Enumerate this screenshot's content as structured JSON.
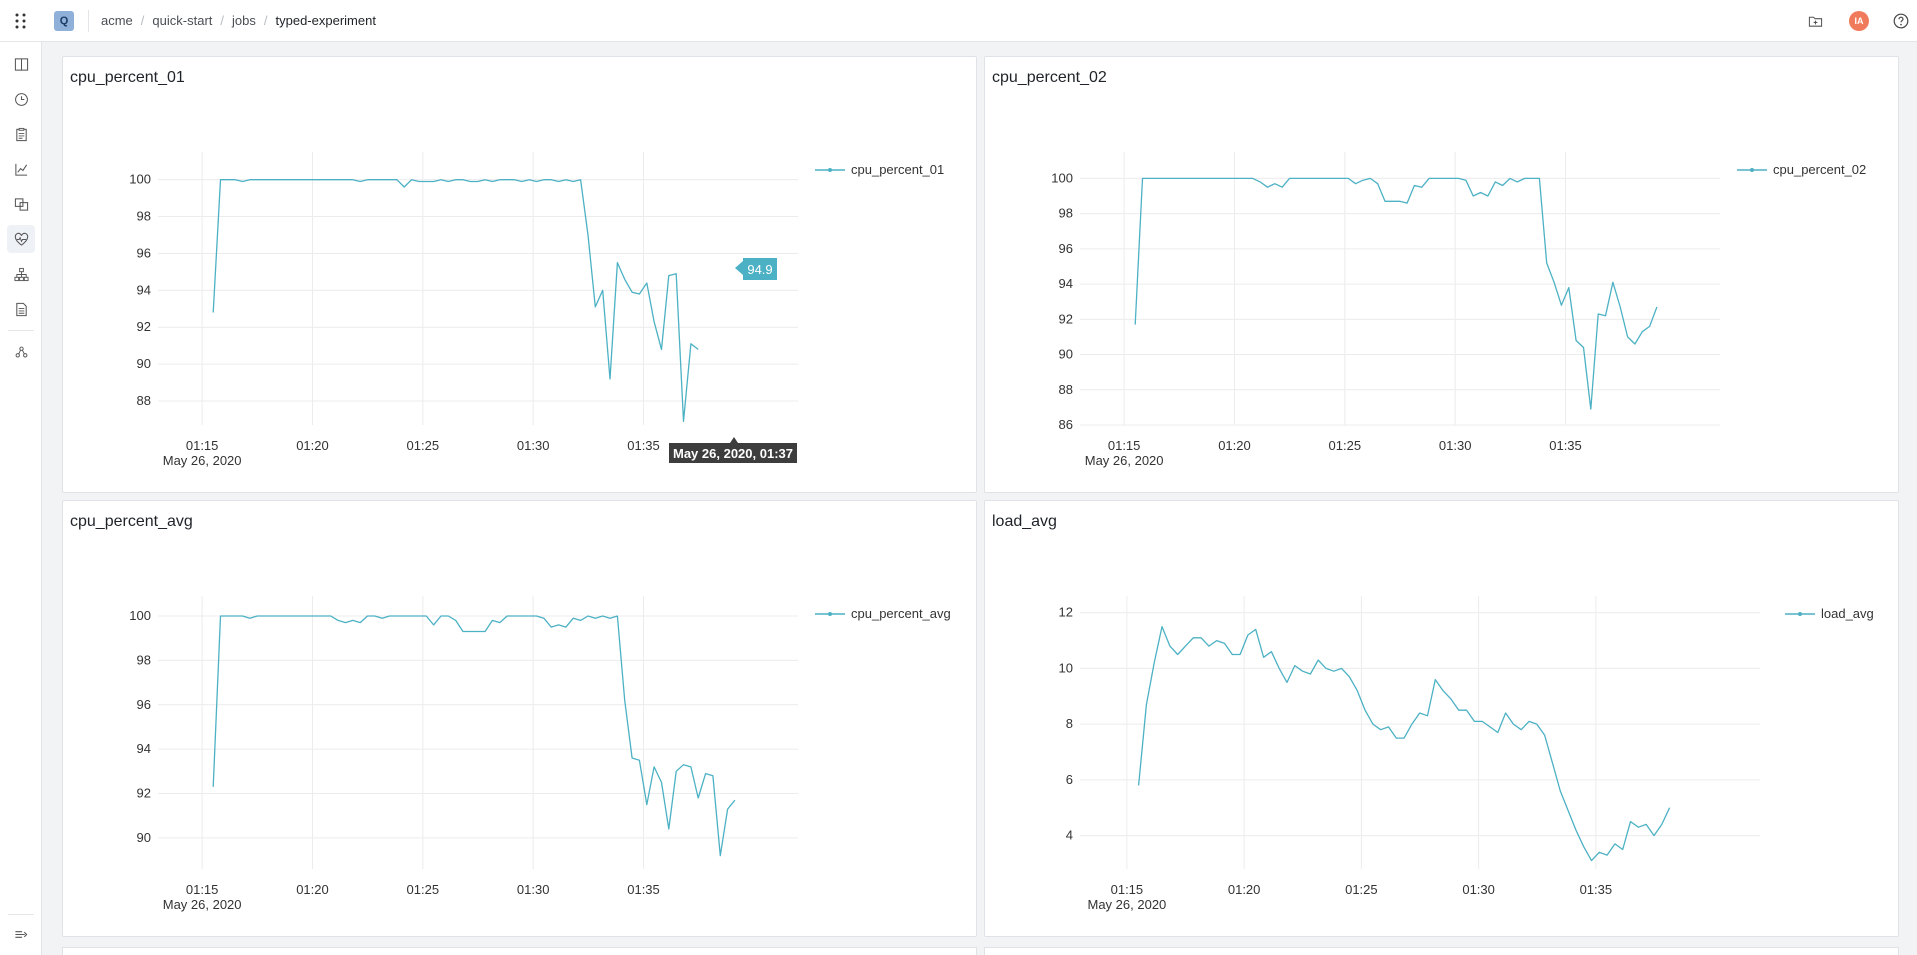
{
  "header": {
    "logo_letter": "Q",
    "breadcrumb": [
      "acme",
      "quick-start",
      "jobs",
      "typed-experiment"
    ],
    "avatar_initials": "IA"
  },
  "sidebar": {
    "icons": [
      "columns-icon",
      "history-icon",
      "clipboard-icon",
      "chart-icon",
      "compare-icon",
      "heartbeat-icon",
      "hierarchy-icon",
      "document-icon",
      "graph-nodes-icon"
    ],
    "active_index": 5,
    "footer_icon": "expand-sidebar-icon"
  },
  "colors": {
    "series": "#4cb1c4",
    "tooltip_value_bg": "#4cb1c4",
    "tooltip_time_bg": "#3d3d3d",
    "avatar": "#f07b5c"
  },
  "charts": [
    {
      "title": "cpu_percent_01",
      "chart_data": {
        "type": "line",
        "x_start": "01:15:30",
        "x_step_minutes": 0.333,
        "x_ticks": [
          "01:15",
          "01:20",
          "01:25",
          "01:30",
          "01:35"
        ],
        "x_sublabel": "May 26, 2020",
        "ylim": [
          86.7,
          101.5
        ],
        "y_ticks": [
          88,
          90,
          92,
          94,
          96,
          98,
          100
        ],
        "series": [
          {
            "name": "cpu_percent_01",
            "values": [
              92.8,
              100,
              100,
              100,
              99.9,
              100,
              100,
              100,
              100,
              100,
              100,
              100,
              100,
              100,
              100,
              100,
              100,
              100,
              100,
              100,
              99.9,
              100,
              100,
              100,
              100,
              100,
              99.6,
              100,
              99.9,
              99.9,
              99.9,
              100,
              99.9,
              100,
              100,
              99.9,
              99.9,
              100,
              99.9,
              100,
              100,
              100,
              99.9,
              100,
              99.9,
              100,
              100,
              99.9,
              100,
              99.9,
              100,
              97,
              93.1,
              94,
              89.2,
              95.5,
              94.6,
              93.9,
              93.8,
              94.4,
              92.3,
              90.8,
              94.8,
              94.9,
              86.9,
              91.1,
              90.8
            ]
          }
        ],
        "legend": "top-right",
        "tooltip": {
          "value": "94.9",
          "time": "May 26, 2020, 01:37"
        }
      }
    },
    {
      "title": "cpu_percent_02",
      "chart_data": {
        "type": "line",
        "x_start": "01:15:30",
        "x_step_minutes": 0.333,
        "x_ticks": [
          "01:15",
          "01:20",
          "01:25",
          "01:30",
          "01:35"
        ],
        "x_sublabel": "May 26, 2020",
        "ylim": [
          86,
          101.5
        ],
        "y_ticks": [
          86,
          88,
          90,
          92,
          94,
          96,
          98,
          100
        ],
        "series": [
          {
            "name": "cpu_percent_02",
            "values": [
              91.7,
              100,
              100,
              100,
              100,
              100,
              100,
              100,
              100,
              100,
              100,
              100,
              100,
              100,
              100,
              100,
              100,
              99.8,
              99.5,
              99.7,
              99.5,
              100,
              100,
              100,
              100,
              100,
              100,
              100,
              100,
              100,
              99.7,
              99.9,
              100,
              99.7,
              98.7,
              98.7,
              98.7,
              98.6,
              99.6,
              99.5,
              100,
              100,
              100,
              100,
              100,
              99.9,
              99,
              99.2,
              99,
              99.8,
              99.6,
              100,
              99.8,
              100,
              100,
              100,
              95.2,
              94.1,
              92.8,
              93.8,
              90.8,
              90.4,
              86.9,
              92.3,
              92.2,
              94.1,
              92.7,
              91,
              90.6,
              91.3,
              91.6,
              92.7
            ]
          }
        ],
        "legend": "top-right"
      }
    },
    {
      "title": "cpu_percent_avg",
      "chart_data": {
        "type": "line",
        "x_start": "01:15:30",
        "x_step_minutes": 0.333,
        "x_ticks": [
          "01:15",
          "01:20",
          "01:25",
          "01:30",
          "01:35"
        ],
        "x_sublabel": "May 26, 2020",
        "ylim": [
          88.6,
          100.9
        ],
        "y_ticks": [
          90,
          92,
          94,
          96,
          98,
          100
        ],
        "series": [
          {
            "name": "cpu_percent_avg",
            "values": [
              92.3,
              100,
              100,
              100,
              100,
              99.9,
              100,
              100,
              100,
              100,
              100,
              100,
              100,
              100,
              100,
              100,
              100,
              99.8,
              99.7,
              99.8,
              99.7,
              100,
              100,
              99.9,
              100,
              100,
              100,
              100,
              100,
              100,
              99.6,
              100,
              100,
              99.8,
              99.3,
              99.3,
              99.3,
              99.3,
              99.8,
              99.7,
              100,
              100,
              100,
              100,
              100,
              99.9,
              99.5,
              99.6,
              99.5,
              99.9,
              99.8,
              100,
              99.9,
              100,
              99.9,
              100,
              96.2,
              93.6,
              93.5,
              91.5,
              93.2,
              92.5,
              90.4,
              93,
              93.3,
              93.2,
              91.8,
              92.9,
              92.8,
              89.2,
              91.3,
              91.7
            ]
          }
        ],
        "legend": "top-right"
      }
    },
    {
      "title": "load_avg",
      "chart_data": {
        "type": "line",
        "x_start": "01:15:30",
        "x_step_minutes": 0.333,
        "x_ticks": [
          "01:15",
          "01:20",
          "01:25",
          "01:30",
          "01:35"
        ],
        "x_sublabel": "May 26, 2020",
        "ylim": [
          2.8,
          12.6
        ],
        "y_ticks": [
          4,
          6,
          8,
          10,
          12
        ],
        "series": [
          {
            "name": "load_avg",
            "values": [
              5.8,
              8.7,
              10.2,
              11.5,
              10.8,
              10.5,
              10.8,
              11.1,
              11.1,
              10.8,
              11,
              10.9,
              10.5,
              10.5,
              11.2,
              11.4,
              10.4,
              10.6,
              10,
              9.5,
              10.1,
              9.9,
              9.8,
              10.3,
              10,
              9.9,
              10,
              9.7,
              9.2,
              8.5,
              8,
              7.8,
              7.9,
              7.5,
              7.5,
              8,
              8.4,
              8.3,
              9.6,
              9.2,
              8.9,
              8.5,
              8.5,
              8.1,
              8.1,
              7.9,
              7.7,
              8.4,
              8,
              7.8,
              8.1,
              8,
              7.6,
              6.6,
              5.6,
              4.9,
              4.2,
              3.6,
              3.1,
              3.4,
              3.3,
              3.7,
              3.5,
              4.5,
              4.3,
              4.4,
              4,
              4.4,
              5
            ]
          }
        ],
        "legend": "top-right"
      }
    }
  ]
}
